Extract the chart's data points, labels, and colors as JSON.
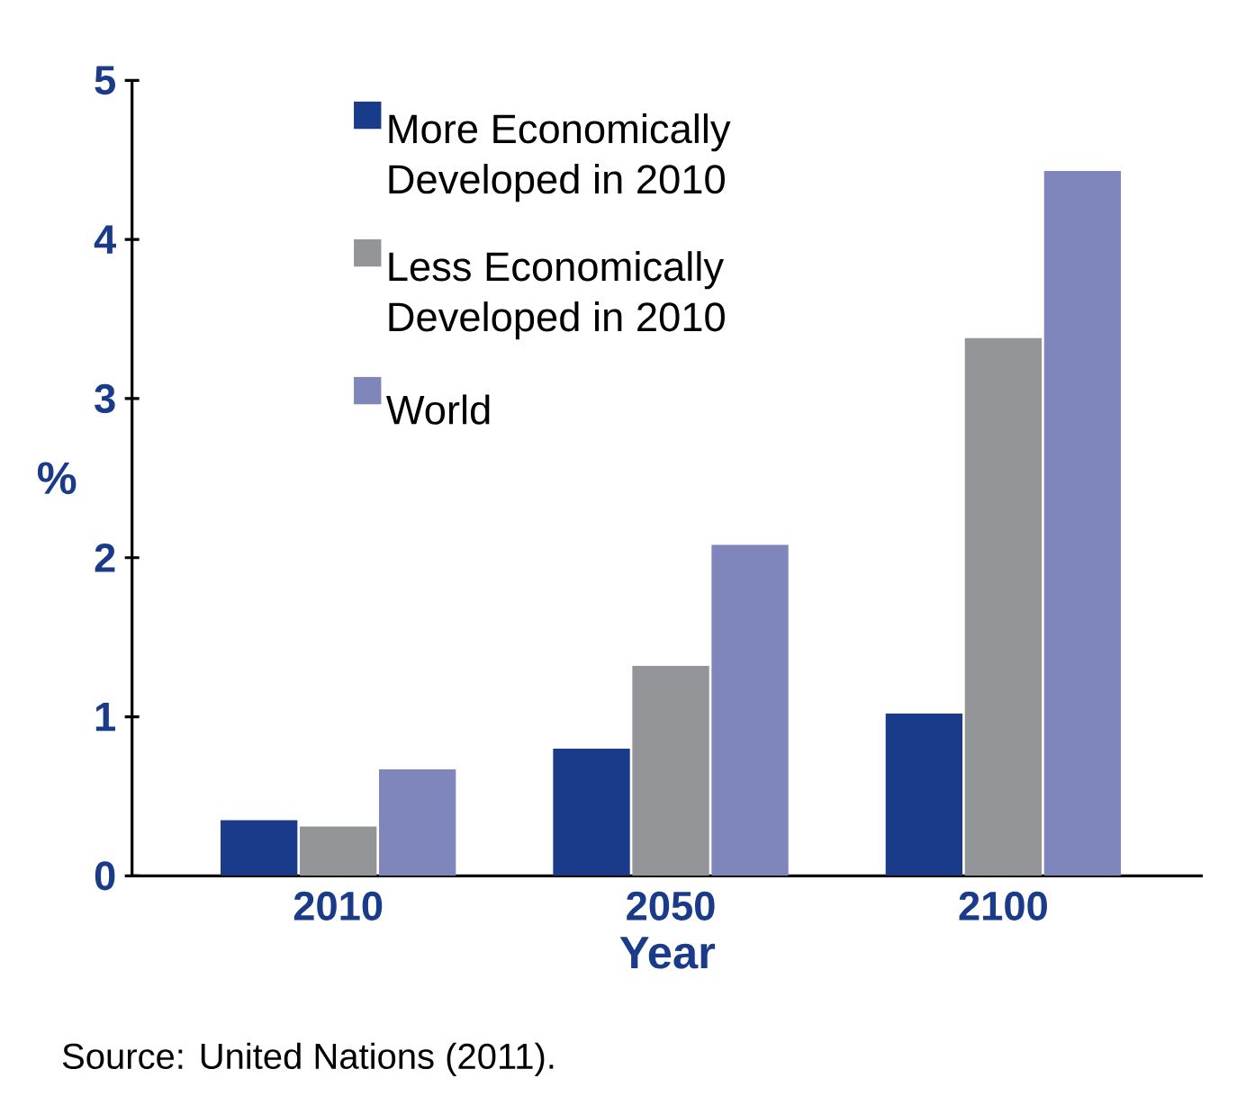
{
  "chart_data": {
    "type": "bar",
    "xlabel": "Year",
    "ylabel": "%",
    "categories": [
      "2010",
      "2050",
      "2100"
    ],
    "series": [
      {
        "name": "More Economically Developed in 2010",
        "color": "#1a3a8a",
        "values": [
          0.35,
          0.8,
          1.02
        ]
      },
      {
        "name": "Less Economically Developed in 2010",
        "color": "#939598",
        "values": [
          0.31,
          1.32,
          3.38
        ]
      },
      {
        "name": "World",
        "color": "#7f86bb",
        "values": [
          0.67,
          2.08,
          4.43
        ]
      }
    ],
    "ylim": [
      0,
      5
    ],
    "yticks": [
      0,
      1,
      2,
      3,
      4,
      5
    ],
    "grid": false,
    "legend": "top left",
    "annotations": [
      "Source: United Nations (2011)."
    ]
  }
}
